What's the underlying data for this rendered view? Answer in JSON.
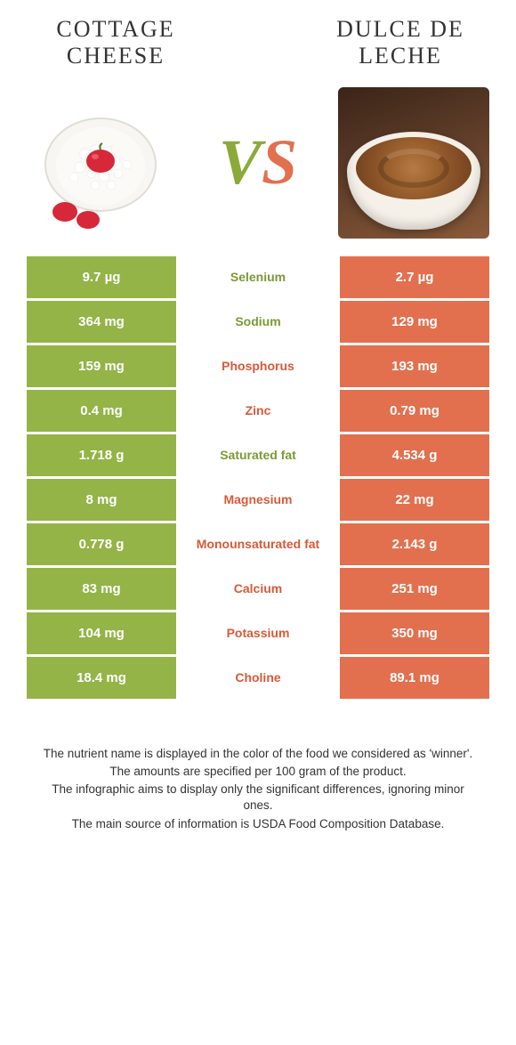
{
  "colors": {
    "left": "#94b447",
    "right": "#e2704f",
    "left_text": "#7a9a34",
    "right_text": "#d85a38"
  },
  "header": {
    "left_title": "Cottage cheese",
    "right_title": "Dulce de leche",
    "vs_v": "V",
    "vs_s": "S"
  },
  "rows": [
    {
      "left": "9.7 µg",
      "label": "Selenium",
      "right": "2.7 µg",
      "winner": "left"
    },
    {
      "left": "364 mg",
      "label": "Sodium",
      "right": "129 mg",
      "winner": "left"
    },
    {
      "left": "159 mg",
      "label": "Phosphorus",
      "right": "193 mg",
      "winner": "right"
    },
    {
      "left": "0.4 mg",
      "label": "Zinc",
      "right": "0.79 mg",
      "winner": "right"
    },
    {
      "left": "1.718 g",
      "label": "Saturated fat",
      "right": "4.534 g",
      "winner": "left"
    },
    {
      "left": "8 mg",
      "label": "Magnesium",
      "right": "22 mg",
      "winner": "right"
    },
    {
      "left": "0.778 g",
      "label": "Monounsaturated fat",
      "right": "2.143 g",
      "winner": "right"
    },
    {
      "left": "83 mg",
      "label": "Calcium",
      "right": "251 mg",
      "winner": "right"
    },
    {
      "left": "104 mg",
      "label": "Potassium",
      "right": "350 mg",
      "winner": "right"
    },
    {
      "left": "18.4 mg",
      "label": "Choline",
      "right": "89.1 mg",
      "winner": "right"
    }
  ],
  "footer": {
    "line1": "The nutrient name is displayed in the color of the food we considered as 'winner'.",
    "line2": "The amounts are specified per 100 gram of the product.",
    "line3": "The infographic aims to display only the significant differences, ignoring minor ones.",
    "line4": "The main source of information is USDA Food Composition Database."
  }
}
